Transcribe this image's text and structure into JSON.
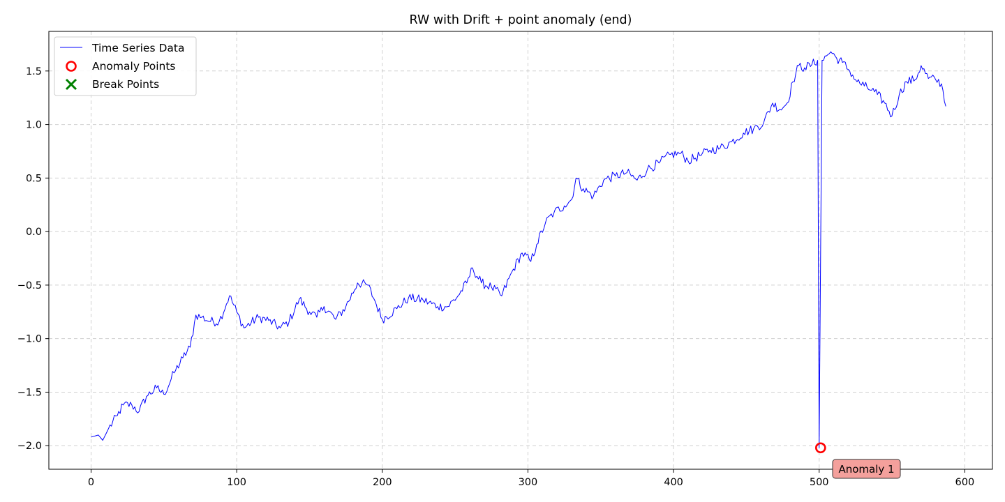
{
  "chart_data": {
    "type": "line",
    "title": "RW with Drift + point anomaly (end)",
    "xlabel": "",
    "ylabel": "",
    "xlim": [
      -29,
      619
    ],
    "ylim": [
      -2.22,
      1.87
    ],
    "x_ticks": [
      0,
      100,
      200,
      300,
      400,
      500,
      600
    ],
    "y_ticks": [
      -2.0,
      -1.5,
      -1.0,
      -0.5,
      0.0,
      0.5,
      1.0,
      1.5
    ],
    "x_tick_labels": [
      "0",
      "100",
      "200",
      "300",
      "400",
      "500",
      "600"
    ],
    "y_tick_labels": [
      "−2.0",
      "−1.5",
      "−1.0",
      "−0.5",
      "0.0",
      "0.5",
      "1.0",
      "1.5"
    ],
    "grid": true,
    "legend_position": "top-left",
    "series": [
      {
        "name": "Time Series Data",
        "color": "#0000ff",
        "anchors": [
          [
            0,
            -1.92
          ],
          [
            5,
            -1.9
          ],
          [
            8,
            -1.95
          ],
          [
            12,
            -1.84
          ],
          [
            18,
            -1.72
          ],
          [
            22,
            -1.62
          ],
          [
            28,
            -1.62
          ],
          [
            33,
            -1.68
          ],
          [
            38,
            -1.54
          ],
          [
            45,
            -1.46
          ],
          [
            50,
            -1.52
          ],
          [
            57,
            -1.32
          ],
          [
            63,
            -1.18
          ],
          [
            68,
            -1.08
          ],
          [
            72,
            -0.78
          ],
          [
            76,
            -0.8
          ],
          [
            82,
            -0.84
          ],
          [
            88,
            -0.84
          ],
          [
            95,
            -0.6
          ],
          [
            100,
            -0.75
          ],
          [
            105,
            -0.9
          ],
          [
            115,
            -0.8
          ],
          [
            122,
            -0.83
          ],
          [
            130,
            -0.9
          ],
          [
            136,
            -0.84
          ],
          [
            143,
            -0.63
          ],
          [
            150,
            -0.75
          ],
          [
            155,
            -0.8
          ],
          [
            160,
            -0.7
          ],
          [
            168,
            -0.82
          ],
          [
            175,
            -0.7
          ],
          [
            183,
            -0.48
          ],
          [
            190,
            -0.5
          ],
          [
            195,
            -0.65
          ],
          [
            200,
            -0.82
          ],
          [
            210,
            -0.72
          ],
          [
            218,
            -0.62
          ],
          [
            228,
            -0.64
          ],
          [
            238,
            -0.7
          ],
          [
            245,
            -0.7
          ],
          [
            252,
            -0.6
          ],
          [
            258,
            -0.48
          ],
          [
            262,
            -0.34
          ],
          [
            268,
            -0.48
          ],
          [
            275,
            -0.52
          ],
          [
            282,
            -0.6
          ],
          [
            290,
            -0.35
          ],
          [
            296,
            -0.2
          ],
          [
            302,
            -0.28
          ],
          [
            306,
            -0.12
          ],
          [
            312,
            0.08
          ],
          [
            318,
            0.18
          ],
          [
            325,
            0.24
          ],
          [
            330,
            0.3
          ],
          [
            333,
            0.5
          ],
          [
            338,
            0.4
          ],
          [
            345,
            0.33
          ],
          [
            352,
            0.48
          ],
          [
            360,
            0.52
          ],
          [
            368,
            0.55
          ],
          [
            375,
            0.48
          ],
          [
            382,
            0.58
          ],
          [
            390,
            0.64
          ],
          [
            398,
            0.72
          ],
          [
            405,
            0.73
          ],
          [
            410,
            0.66
          ],
          [
            418,
            0.71
          ],
          [
            425,
            0.76
          ],
          [
            432,
            0.78
          ],
          [
            440,
            0.84
          ],
          [
            448,
            0.92
          ],
          [
            455,
            0.96
          ],
          [
            462,
            1.02
          ],
          [
            468,
            1.2
          ],
          [
            473,
            1.14
          ],
          [
            478,
            1.2
          ],
          [
            482,
            1.4
          ],
          [
            486,
            1.55
          ],
          [
            490,
            1.53
          ],
          [
            495,
            1.56
          ],
          [
            499,
            1.6
          ],
          [
            500,
            -2.02
          ],
          [
            502,
            1.6
          ],
          [
            505,
            1.64
          ],
          [
            508,
            1.68
          ],
          [
            512,
            1.62
          ],
          [
            516,
            1.58
          ],
          [
            521,
            1.5
          ],
          [
            526,
            1.4
          ],
          [
            531,
            1.36
          ],
          [
            536,
            1.32
          ],
          [
            540,
            1.28
          ],
          [
            545,
            1.2
          ],
          [
            550,
            1.08
          ],
          [
            555,
            1.28
          ],
          [
            560,
            1.4
          ],
          [
            566,
            1.42
          ],
          [
            570,
            1.55
          ],
          [
            575,
            1.43
          ],
          [
            580,
            1.42
          ],
          [
            584,
            1.38
          ],
          [
            587,
            1.17
          ]
        ],
        "n_points": 588
      }
    ],
    "anomaly_points": {
      "name": "Anomaly Points",
      "color": "#ff0000",
      "points": [
        [
          501,
          -2.02
        ]
      ]
    },
    "break_points": {
      "name": "Break Points",
      "color": "#008000",
      "points": []
    },
    "annotations": [
      {
        "text": "Anomaly 1",
        "x": 501,
        "y": -2.02,
        "box_color": "#f4a09c"
      }
    ]
  }
}
